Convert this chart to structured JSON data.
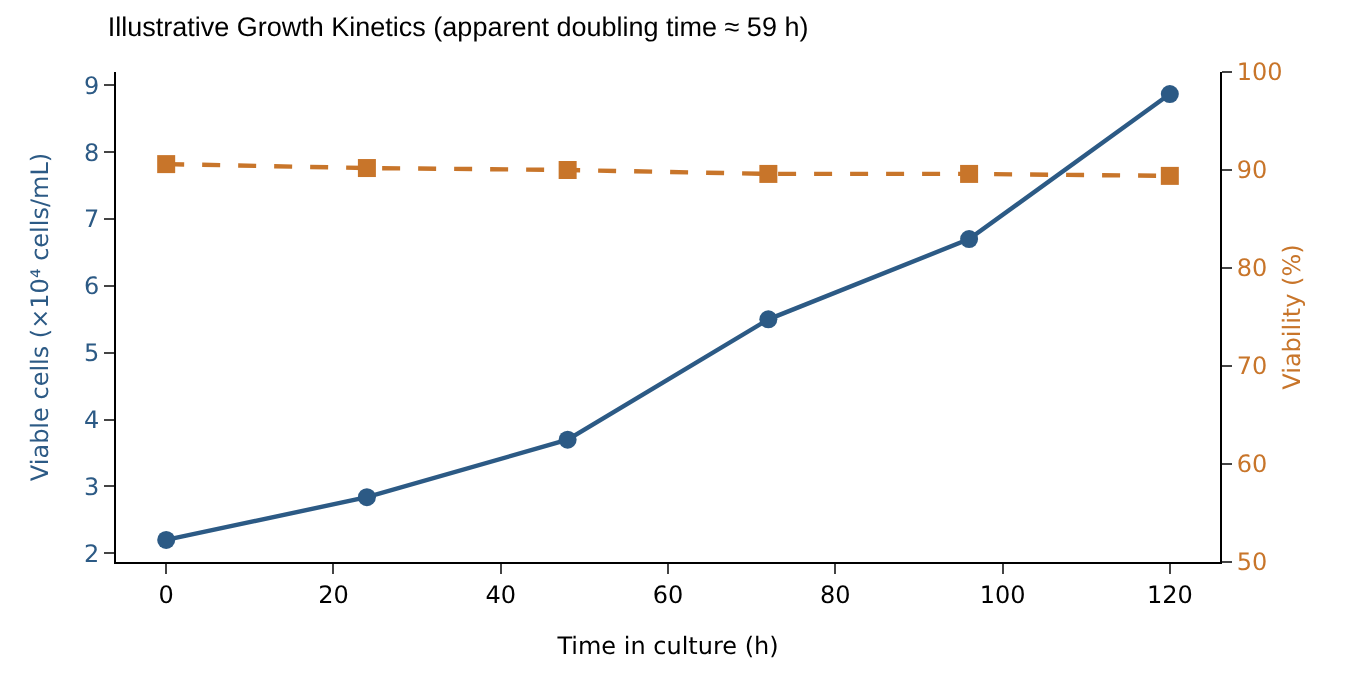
{
  "chart_data": {
    "type": "line",
    "title": "Illustrative Growth Kinetics (apparent doubling time ≈ 59 h)",
    "xlabel": "Time in culture (h)",
    "ylabel": "Viable cells (×10⁴ cells/mL)",
    "y2label": "Viability (%)",
    "x": [
      0,
      24,
      48,
      72,
      96,
      120
    ],
    "xlim": [
      -6,
      126
    ],
    "xticks": [
      0,
      20,
      40,
      60,
      80,
      100,
      120
    ],
    "ylim": [
      1.87,
      9.2
    ],
    "yticks": [
      2,
      3,
      4,
      5,
      6,
      7,
      8,
      9
    ],
    "y2lim": [
      50,
      100
    ],
    "y2ticks": [
      50,
      60,
      70,
      80,
      90,
      100
    ],
    "grid": false,
    "series": [
      {
        "color": "#2c5a85",
        "values": [
          2.2,
          2.84,
          3.7,
          5.5,
          6.7,
          8.87
        ],
        "marker": "circle",
        "line_style": "solid"
      },
      {
        "color": "#c8752a",
        "values": [
          90.6,
          90.2,
          90.0,
          89.6,
          89.6,
          89.4
        ],
        "axis": "y2",
        "marker": "square",
        "line_style": "dashed"
      }
    ]
  }
}
